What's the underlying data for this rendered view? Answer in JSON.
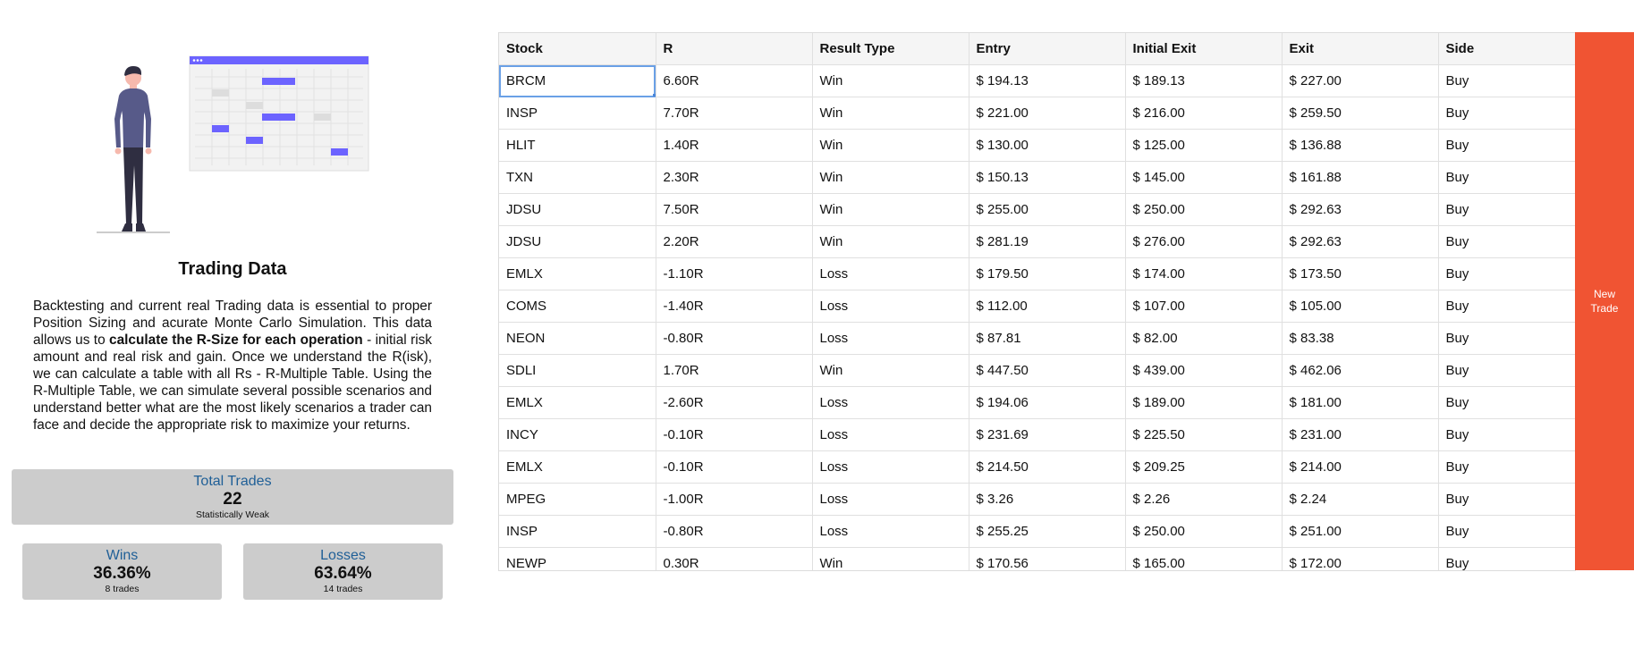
{
  "left": {
    "title": "Trading Data",
    "description_parts": [
      "Backtesting and current real Trading data is essential to proper Position Sizing and acurate Monte Carlo Simulation. This data allows us to ",
      "calculate the R-Size for each operation",
      " - initial risk amount and real risk and gain. Once we understand the R(isk), we can calculate a table with all Rs - R-Multiple Table. Using the R-Multiple Table, we can simulate several possible scenarios and understand better what are the most likely scenarios a trader can face and decide the appropriate risk to maximize your returns."
    ],
    "total": {
      "label": "Total Trades",
      "value": "22",
      "sub": "Statistically Weak"
    },
    "wins": {
      "label": "Wins",
      "value": "36.36%",
      "sub": "8 trades"
    },
    "losses": {
      "label": "Losses",
      "value": "63.64%",
      "sub": "14 trades"
    }
  },
  "table": {
    "headers": [
      "Stock",
      "R",
      "Result Type",
      "Entry",
      "Initial Exit",
      "Exit",
      "Side"
    ],
    "rows": [
      [
        "BRCM",
        "6.60R",
        "Win",
        "$ 194.13",
        "$ 189.13",
        "$ 227.00",
        "Buy"
      ],
      [
        "INSP",
        "7.70R",
        "Win",
        "$ 221.00",
        "$ 216.00",
        "$ 259.50",
        "Buy"
      ],
      [
        "HLIT",
        "1.40R",
        "Win",
        "$ 130.00",
        "$ 125.00",
        "$ 136.88",
        "Buy"
      ],
      [
        "TXN",
        "2.30R",
        "Win",
        "$ 150.13",
        "$ 145.00",
        "$ 161.88",
        "Buy"
      ],
      [
        "JDSU",
        "7.50R",
        "Win",
        "$ 255.00",
        "$ 250.00",
        "$ 292.63",
        "Buy"
      ],
      [
        "JDSU",
        "2.20R",
        "Win",
        "$ 281.19",
        "$ 276.00",
        "$ 292.63",
        "Buy"
      ],
      [
        "EMLX",
        "-1.10R",
        "Loss",
        "$ 179.50",
        "$ 174.00",
        "$ 173.50",
        "Buy"
      ],
      [
        "COMS",
        "-1.40R",
        "Loss",
        "$ 112.00",
        "$ 107.00",
        "$ 105.00",
        "Buy"
      ],
      [
        "NEON",
        "-0.80R",
        "Loss",
        "$ 87.81",
        "$ 82.00",
        "$ 83.38",
        "Buy"
      ],
      [
        "SDLI",
        "1.70R",
        "Win",
        "$ 447.50",
        "$ 439.00",
        "$ 462.06",
        "Buy"
      ],
      [
        "EMLX",
        "-2.60R",
        "Loss",
        "$ 194.06",
        "$ 189.00",
        "$ 181.00",
        "Buy"
      ],
      [
        "INCY",
        "-0.10R",
        "Loss",
        "$ 231.69",
        "$ 225.50",
        "$ 231.00",
        "Buy"
      ],
      [
        "EMLX",
        "-0.10R",
        "Loss",
        "$ 214.50",
        "$ 209.25",
        "$ 214.00",
        "Buy"
      ],
      [
        "MPEG",
        "-1.00R",
        "Loss",
        "$ 3.26",
        "$ 2.26",
        "$ 2.24",
        "Buy"
      ],
      [
        "INSP",
        "-0.80R",
        "Loss",
        "$ 255.25",
        "$ 250.00",
        "$ 251.00",
        "Buy"
      ],
      [
        "NEWP",
        "0.30R",
        "Win",
        "$ 170.56",
        "$ 165.00",
        "$ 172.00",
        "Buy"
      ]
    ]
  },
  "new_trade": {
    "line1": "New",
    "line2": "Trade"
  },
  "colors": {
    "accent": "#f05433",
    "stat_bg": "#cccccc",
    "stat_label": "#1f5f97",
    "illustration_purple": "#6c63ff"
  }
}
